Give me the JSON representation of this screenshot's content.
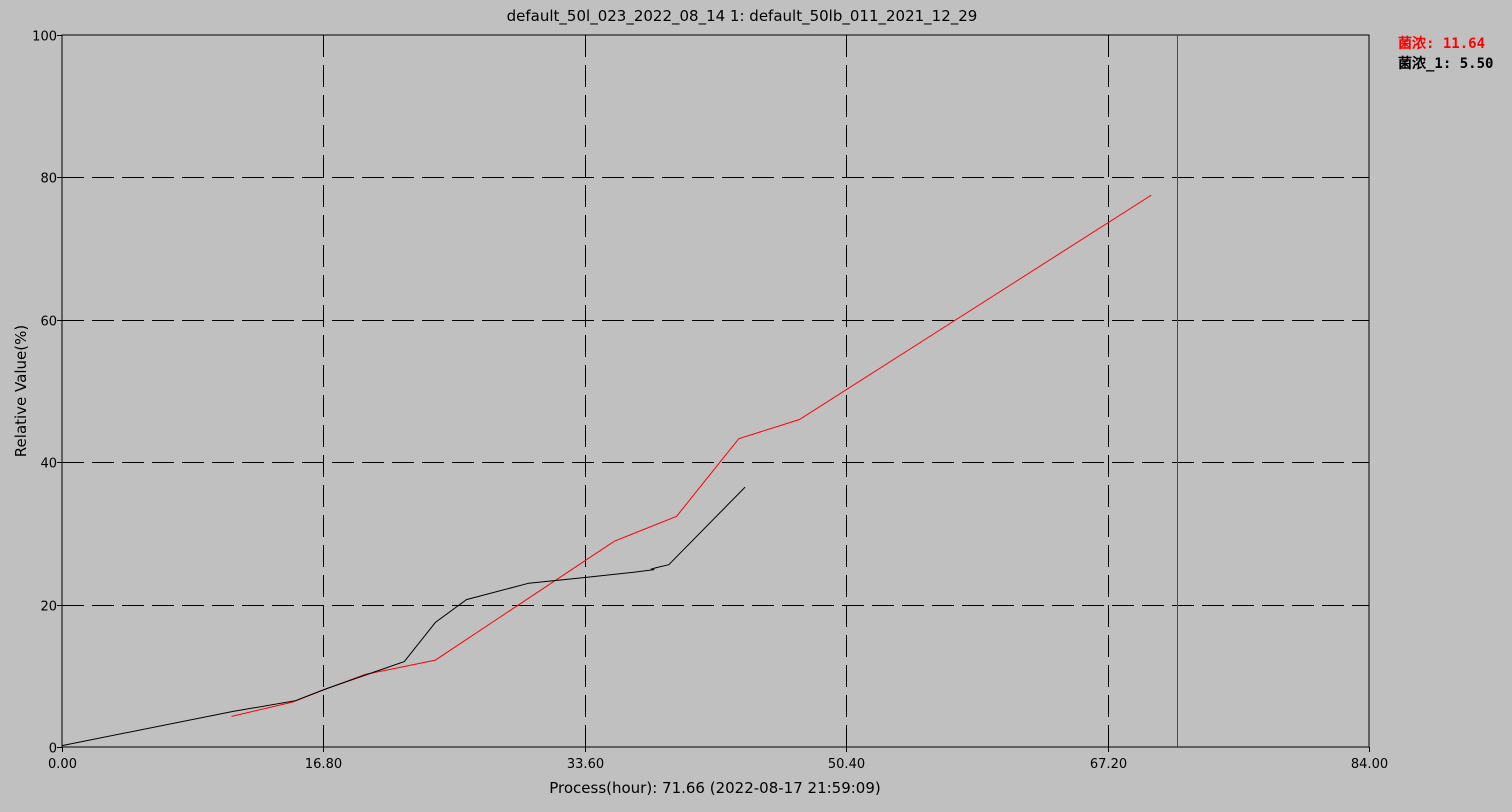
{
  "chart_data": {
    "type": "line",
    "title": "default_50l_023_2022_08_14  1: default_50lb_011_2021_12_29",
    "xlabel": "Process(hour): 71.66 (2022-08-17 21:59:09)",
    "ylabel": "Relative Value(%)",
    "xlim": [
      0,
      84
    ],
    "ylim": [
      0,
      100
    ],
    "x_ticks": [
      "0.00",
      "16.80",
      "33.60",
      "50.40",
      "67.20",
      "84.00"
    ],
    "y_ticks": [
      "0",
      "20",
      "40",
      "60",
      "80",
      "100"
    ],
    "grid": true,
    "grid_style": "dashed",
    "background_color": "#c0c0c0",
    "cursor": {
      "x": 71.66,
      "color": "#ff0000"
    },
    "series": [
      {
        "name": "菌浓",
        "color": "#ff0000",
        "cursor_value": "11.64",
        "points": [
          [
            10.9,
            4.3
          ],
          [
            14.8,
            6.3
          ],
          [
            16.8,
            8.0
          ],
          [
            19.5,
            10.2
          ],
          [
            22.0,
            11.3
          ],
          [
            24.0,
            12.2
          ],
          [
            35.5,
            28.9
          ],
          [
            39.5,
            32.4
          ],
          [
            43.5,
            43.3
          ],
          [
            47.4,
            46.0
          ],
          [
            70.0,
            77.5
          ]
        ]
      },
      {
        "name": "菌浓_1",
        "color": "#000000",
        "cursor_value": "5.50",
        "points": [
          [
            0.0,
            0.2
          ],
          [
            11.0,
            5.0
          ],
          [
            15.0,
            6.5
          ],
          [
            17.0,
            8.2
          ],
          [
            22.0,
            12.0
          ],
          [
            24.0,
            17.5
          ],
          [
            26.0,
            20.7
          ],
          [
            30.0,
            23.0
          ],
          [
            33.6,
            23.8
          ],
          [
            37.0,
            24.6
          ],
          [
            38.0,
            24.9
          ],
          [
            37.9,
            25.0
          ],
          [
            38.2,
            25.2
          ],
          [
            39.0,
            25.6
          ],
          [
            43.9,
            36.5
          ]
        ]
      }
    ],
    "legend_position": "right"
  },
  "legend": {
    "separator": ": "
  }
}
